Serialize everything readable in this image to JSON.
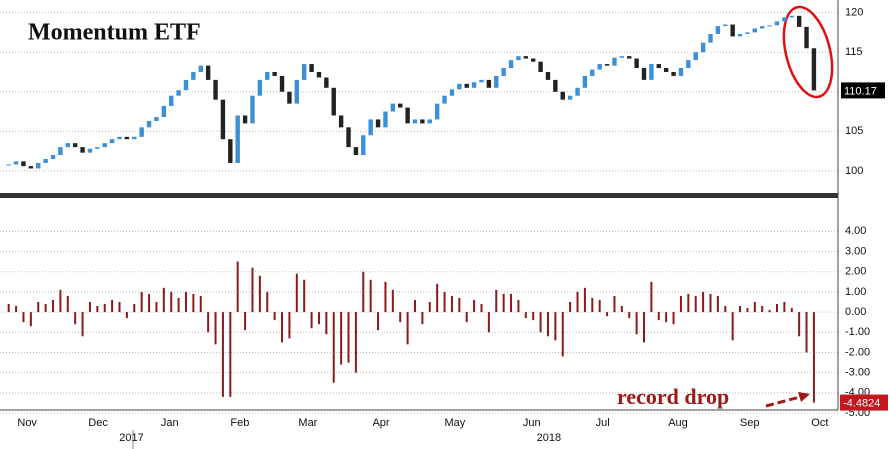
{
  "chart_data": [
    {
      "type": "candlestick",
      "title": "Momentum ETF",
      "values": [
        100.8,
        101.2,
        100.6,
        100.3,
        101,
        101.5,
        102,
        103,
        103.5,
        103,
        102.3,
        102.8,
        103,
        103.5,
        104,
        104.3,
        104,
        104.3,
        105.5,
        106.3,
        106.8,
        108.2,
        109.5,
        110.2,
        111.5,
        112.5,
        113.3,
        111.5,
        109,
        104,
        101,
        107,
        106,
        109.5,
        111.5,
        112.5,
        112,
        110,
        108.5,
        111.5,
        113.5,
        112.5,
        111.8,
        110.5,
        107,
        105.5,
        103,
        102,
        104.5,
        106.5,
        105.5,
        107.5,
        108.5,
        108,
        106,
        106.5,
        106,
        106.5,
        108.5,
        109.5,
        110.3,
        111,
        110.5,
        111.2,
        111.5,
        110.5,
        112,
        113,
        114,
        114.5,
        114.2,
        113.8,
        112.5,
        111.5,
        110,
        109,
        109.5,
        110.5,
        112,
        112.8,
        113.5,
        113.3,
        114.3,
        114.5,
        114.2,
        113,
        111.5,
        113.5,
        113,
        112.5,
        112,
        113,
        114,
        115,
        116.2,
        117.3,
        118.3,
        118.5,
        117,
        117.3,
        117.5,
        118,
        118.3,
        118.4,
        118.9,
        119.4,
        119.6,
        118.2,
        115.5,
        110.17
      ],
      "up_color": "#3b8fd8",
      "down_color": "#222222",
      "xlim": [
        -0.5,
        110.5
      ],
      "ylim": [
        97.2,
        121.6
      ],
      "yticks": [
        100,
        105,
        110,
        115,
        120
      ],
      "grid": true
    },
    {
      "type": "bar",
      "annotation": "record drop",
      "color": "#8b1a1a",
      "values": [
        0.4,
        0.3,
        -0.5,
        -0.7,
        0.5,
        0.4,
        0.6,
        1.1,
        0.8,
        -0.6,
        -1.2,
        0.5,
        0.3,
        0.4,
        0.6,
        0.5,
        -0.3,
        0.4,
        1.0,
        0.9,
        0.5,
        1.2,
        1.0,
        0.7,
        1.0,
        0.9,
        0.8,
        -1.0,
        -1.6,
        -4.2,
        -4.2,
        2.5,
        -0.9,
        2.2,
        1.8,
        1.0,
        -0.4,
        -1.5,
        -1.3,
        1.9,
        1.6,
        -0.8,
        -0.6,
        -1.1,
        -3.5,
        -2.6,
        -2.5,
        -3.0,
        2.0,
        1.6,
        -0.9,
        1.5,
        1.1,
        -0.5,
        -1.6,
        0.6,
        -0.6,
        0.5,
        1.4,
        1.0,
        0.8,
        0.7,
        -0.5,
        0.6,
        0.4,
        -1.0,
        1.1,
        0.9,
        0.9,
        0.6,
        -0.3,
        -0.4,
        -1.0,
        -1.2,
        -1.4,
        -2.2,
        0.5,
        1.0,
        1.2,
        0.7,
        0.6,
        -0.2,
        0.8,
        0.3,
        -0.3,
        -1.1,
        -1.5,
        1.5,
        -0.4,
        -0.5,
        -0.6,
        0.8,
        0.9,
        0.8,
        1.0,
        0.9,
        0.8,
        0.3,
        -1.4,
        0.3,
        0.2,
        0.5,
        0.3,
        0.1,
        0.4,
        0.5,
        0.2,
        -1.2,
        -2.0,
        -4.4824
      ],
      "xlim": [
        -0.5,
        110.5
      ],
      "ylim": [
        -4.85,
        5.65
      ],
      "yticks": [
        {
          "value": 4,
          "label": "4.00"
        },
        {
          "value": 3,
          "label": "3.00"
        },
        {
          "value": 2,
          "label": "2.00"
        },
        {
          "value": 1,
          "label": "1.00"
        },
        {
          "value": 0,
          "label": "0.00"
        },
        {
          "value": -1,
          "label": "-1.00"
        },
        {
          "value": -2,
          "label": "-2.00"
        },
        {
          "value": -3,
          "label": "-3.00"
        },
        {
          "value": -4,
          "label": "-4.00"
        },
        {
          "value": -5,
          "label": "-5.00"
        }
      ],
      "xticks": [
        {
          "value": 2.5,
          "label": "Nov"
        },
        {
          "value": 12.1,
          "label": "Dec"
        },
        {
          "value": 21.8,
          "label": "Jan"
        },
        {
          "value": 31.3,
          "label": "Feb"
        },
        {
          "value": 40.5,
          "label": "Mar"
        },
        {
          "value": 50.4,
          "label": "Apr"
        },
        {
          "value": 60.4,
          "label": "May"
        },
        {
          "value": 70.8,
          "label": "Jun"
        },
        {
          "value": 80.4,
          "label": "Jul"
        },
        {
          "value": 90.6,
          "label": "Aug"
        },
        {
          "value": 100.3,
          "label": "Sep"
        },
        {
          "value": 109.8,
          "label": "Oct"
        }
      ],
      "year_ticks": [
        {
          "value": 8.5,
          "label": "2017"
        },
        {
          "value": 65,
          "label": "2018"
        }
      ],
      "grid": true
    }
  ]
}
